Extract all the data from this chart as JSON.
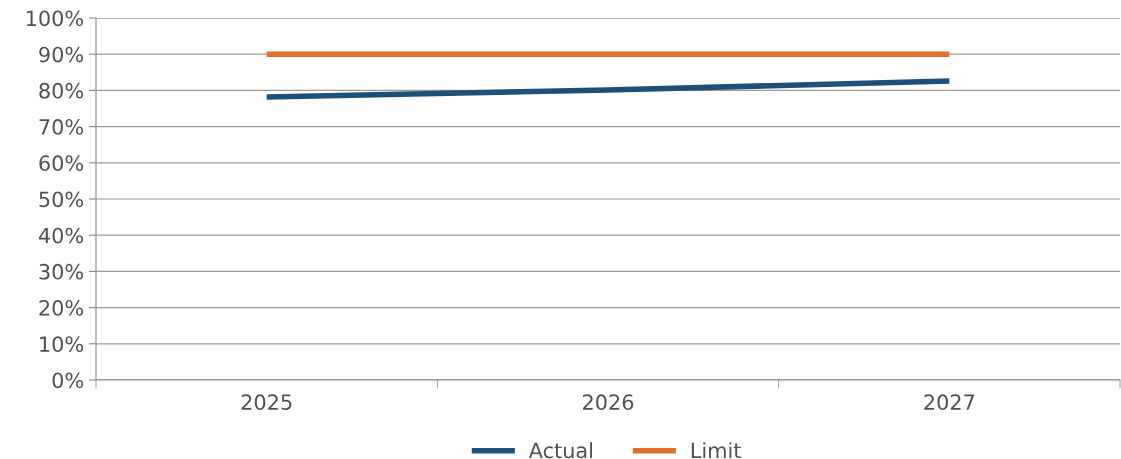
{
  "chart_data": {
    "type": "line",
    "categories": [
      "2025",
      "2026",
      "2027"
    ],
    "series": [
      {
        "name": "Actual",
        "color": "#1a5079",
        "values": [
          78.2,
          80.1,
          82.6
        ]
      },
      {
        "name": "Limit",
        "color": "#e0702a",
        "values": [
          90,
          90,
          90
        ]
      }
    ],
    "ylim": [
      0,
      100
    ],
    "yticks": [
      {
        "value": 0,
        "label": "0%"
      },
      {
        "value": 10,
        "label": "10%"
      },
      {
        "value": 20,
        "label": "20%"
      },
      {
        "value": 30,
        "label": "30%"
      },
      {
        "value": 40,
        "label": "40%"
      },
      {
        "value": 50,
        "label": "50%"
      },
      {
        "value": 60,
        "label": "60%"
      },
      {
        "value": 70,
        "label": "70%"
      },
      {
        "value": 80,
        "label": "80%"
      },
      {
        "value": 90,
        "label": "90%"
      },
      {
        "value": 100,
        "label": "100%"
      }
    ],
    "grid": "y",
    "legend": "bottom",
    "marker": "none",
    "line_style": "solid"
  }
}
